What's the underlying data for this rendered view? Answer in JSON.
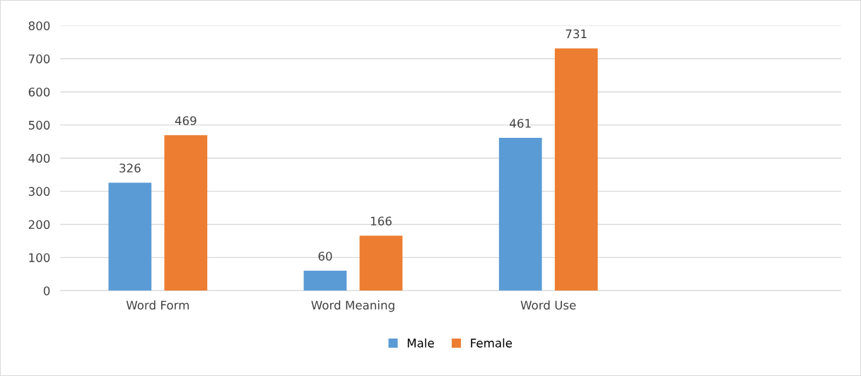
{
  "chart_data": {
    "type": "bar",
    "categories": [
      "Word Form",
      "Word Meaning",
      "Word Use",
      null
    ],
    "series": [
      {
        "name": "Male",
        "color": "#5b9bd5",
        "values": [
          326,
          60,
          461,
          null
        ]
      },
      {
        "name": "Female",
        "color": "#ed7d31",
        "values": [
          469,
          166,
          731,
          null
        ]
      }
    ],
    "ylim": [
      0,
      800
    ],
    "yticks": [
      0,
      100,
      200,
      300,
      400,
      500,
      600,
      700,
      800
    ],
    "grid": "y",
    "legend": "bottom",
    "data_labels": true
  }
}
